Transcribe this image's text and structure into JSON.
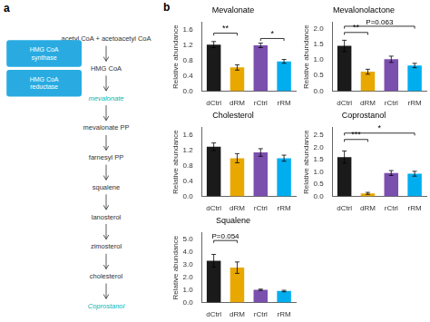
{
  "chart_data": [
    {
      "type": "diagram",
      "title": "a",
      "annotations": [
        {
          "text": "acetyl CoA + acetoacetyl CoA"
        },
        {
          "text": "HMG CoA"
        },
        {
          "text": "mevalonate",
          "color": "#00B8B8"
        },
        {
          "text": "mevalonate PP"
        },
        {
          "text": "farnesyl PP"
        },
        {
          "text": "squalene"
        },
        {
          "text": "lanosterol"
        },
        {
          "text": "zimosterol"
        },
        {
          "text": "cholesterol"
        },
        {
          "text": "Coprostanol",
          "color": "#00B8B8"
        }
      ],
      "boxes": [
        {
          "text": "HMG CoA\nsynthase",
          "color": "#29ABE2"
        },
        {
          "text": "HMG CoA\nreductase",
          "color": "#29ABE2"
        }
      ]
    },
    {
      "type": "panel",
      "title": "b",
      "charts": [
        {
          "type": "bar",
          "title": "Mevalonate",
          "categories": [
            "dCtrl",
            "dRM",
            "rCtrl",
            "rRM"
          ],
          "values": [
            1.22,
            0.62,
            1.2,
            0.78
          ],
          "errors": [
            0.08,
            0.07,
            0.06,
            0.05
          ],
          "colors": [
            "#1a1a1a",
            "#E8A800",
            "#7B4FAE",
            "#00AEEF"
          ],
          "ylabel": "Relative abundance",
          "ylim": [
            0,
            1.8
          ],
          "yticks": [
            {
              "value": 0,
              "label": "0.0"
            },
            0.4,
            0.8,
            1.2,
            1.6
          ],
          "grid": false,
          "annotations": [
            {
              "text": "**",
              "x": [
                "dCtrl",
                "dRM"
              ],
              "y": 1.52
            },
            {
              "text": "*",
              "x": [
                "rCtrl",
                "rRM"
              ],
              "y": 1.38
            }
          ]
        },
        {
          "type": "bar",
          "title": "Mevalonolactone",
          "categories": [
            "dCtrl",
            "dRM",
            "rCtrl",
            "rRM"
          ],
          "values": [
            1.45,
            0.62,
            1.02,
            0.82
          ],
          "errors": [
            0.18,
            0.08,
            0.1,
            0.07
          ],
          "colors": [
            "#1a1a1a",
            "#E8A800",
            "#7B4FAE",
            "#00AEEF"
          ],
          "ylabel": "Relative abundance",
          "ylim": [
            0,
            2.2
          ],
          "yticks": [
            {
              "value": 0,
              "label": "0.0"
            },
            0.5,
            {
              "value": 1,
              "label": "1.0"
            },
            1.5,
            {
              "value": 2,
              "label": "2.0"
            }
          ],
          "grid": false,
          "annotations": [
            {
              "text": "P=0.063",
              "x": [
                "dCtrl",
                "rRM"
              ],
              "y": 2.08
            },
            {
              "text": "**",
              "x": [
                "dCtrl",
                "dRM"
              ],
              "y": 1.88
            }
          ]
        },
        {
          "type": "bar",
          "title": "Cholesterol",
          "categories": [
            "dCtrl",
            "dRM",
            "rCtrl",
            "rRM"
          ],
          "values": [
            1.3,
            1.0,
            1.15,
            1.0
          ],
          "errors": [
            0.1,
            0.12,
            0.1,
            0.08
          ],
          "colors": [
            "#1a1a1a",
            "#E8A800",
            "#7B4FAE",
            "#00AEEF"
          ],
          "ylabel": "Relative abundance",
          "ylim": [
            0,
            1.8
          ],
          "yticks": [
            {
              "value": 0,
              "label": "0.0"
            },
            0.4,
            0.8,
            1.2,
            1.6
          ],
          "grid": false,
          "annotations": []
        },
        {
          "type": "bar",
          "title": "Coprostanol",
          "categories": [
            "dCtrl",
            "dRM",
            "rCtrl",
            "rRM"
          ],
          "values": [
            1.6,
            0.12,
            0.95,
            0.92
          ],
          "errors": [
            0.25,
            0.04,
            0.1,
            0.1
          ],
          "colors": [
            "#1a1a1a",
            "#E8A800",
            "#7B4FAE",
            "#00AEEF"
          ],
          "ylabel": "Relative abundance",
          "ylim": [
            0,
            2.8
          ],
          "yticks": [
            {
              "value": 0,
              "label": "0.0"
            },
            0.5,
            {
              "value": 1,
              "label": "1.0"
            },
            1.5,
            {
              "value": 2,
              "label": "2.0"
            },
            2.5
          ],
          "grid": false,
          "annotations": [
            {
              "text": "*",
              "x": [
                "dCtrl",
                "rRM"
              ],
              "y": 2.58
            },
            {
              "text": "***",
              "x": [
                "dCtrl",
                "dRM"
              ],
              "y": 2.32
            }
          ]
        },
        {
          "type": "bar",
          "title": "Squalene",
          "categories": [
            "dCtrl",
            "dRM",
            "rCtrl",
            "rRM"
          ],
          "values": [
            3.3,
            2.75,
            1.0,
            0.9
          ],
          "errors": [
            0.5,
            0.45,
            0.05,
            0.06
          ],
          "colors": [
            "#1a1a1a",
            "#E8A800",
            "#7B4FAE",
            "#00AEEF"
          ],
          "ylabel": "Relative abundance",
          "ylim": [
            0,
            5.5
          ],
          "yticks": [
            {
              "value": 0,
              "label": "0.0"
            },
            {
              "value": 1,
              "label": "1.0"
            },
            {
              "value": 2,
              "label": "2.0"
            },
            {
              "value": 3,
              "label": "3.0"
            },
            {
              "value": 4,
              "label": "4.0"
            },
            {
              "value": 5,
              "label": "5.0"
            }
          ],
          "grid": false,
          "annotations": [
            {
              "text": "P=0.054",
              "x": [
                "dCtrl",
                "dRM"
              ],
              "y": 4.9
            }
          ]
        }
      ]
    }
  ]
}
